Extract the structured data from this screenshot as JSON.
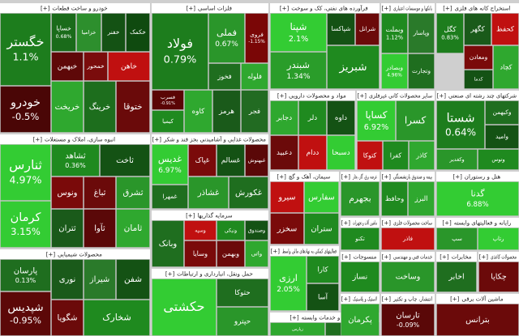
{
  "expand": "[+]",
  "sectors": [
    {
      "title": "خودرو و ساخت قطعات",
      "tiles": [
        {
          "label": "خگستر",
          "change": "1.1%",
          "color": "#1d7d1d"
        },
        {
          "label": "خودرو",
          "change": "-0.5%",
          "color": "#4a0606"
        },
        {
          "label": "خساپا",
          "change": "0.68%",
          "color": "#1a6b1a"
        },
        {
          "label": "خزامیا",
          "color": "#2d8f2d"
        },
        {
          "label": "خفنر",
          "color": "#145214"
        },
        {
          "label": "خکمک",
          "color": "#0f4a0f"
        },
        {
          "label": "خبهمن",
          "color": "#5e0808"
        },
        {
          "label": "خمحور",
          "color": "#7a0c0c"
        },
        {
          "label": "خاهن",
          "color": "#c01010"
        },
        {
          "label": "خریخت",
          "color": "#2fa82f"
        },
        {
          "label": "خرینگ",
          "color": "#1d6e1d"
        },
        {
          "label": "ختوقا",
          "color": "#6a0a0a"
        }
      ]
    },
    {
      "title": "فلزات اساسی",
      "tiles": [
        {
          "label": "فولاد",
          "change": "0.79%",
          "color": "#1d7d1d"
        },
        {
          "label": "فملی",
          "change": "0.67%",
          "color": "#2a962a"
        },
        {
          "label": "فروی",
          "change": "-1.15%",
          "color": "#7a0606"
        },
        {
          "label": "فخوز",
          "color": "#1f6e1f"
        },
        {
          "label": "فلوله",
          "color": "#2fa82f"
        },
        {
          "label": "فسرب",
          "change": "-0.91%",
          "color": "#5a0505"
        },
        {
          "label": "کیمیا",
          "color": "#1f8a1f"
        },
        {
          "label": "کاوه",
          "color": "#2fa82f"
        },
        {
          "label": "هرمز",
          "color": "#1a5a1a"
        },
        {
          "label": "فجر",
          "color": "#226b22"
        }
      ]
    },
    {
      "title": "فرآورده های نفتی، کک و سوخت",
      "tiles": [
        {
          "label": "شپنا",
          "change": "2.1%",
          "color": "#33cc33"
        },
        {
          "label": "شبندر",
          "change": "1.34%",
          "color": "#2a9d2a"
        },
        {
          "label": "شبریز",
          "color": "#1f8a1f"
        },
        {
          "label": "شپاکسا",
          "color": "#145214"
        },
        {
          "label": "شرانل",
          "color": "#6b0a0a"
        }
      ]
    },
    {
      "title": "بانکها و موسسات اعتباری",
      "tiles": [
        {
          "label": "وبملت",
          "change": "1.12%",
          "color": "#1f8a1f"
        },
        {
          "label": "وپاسار",
          "color": "#2a7a2a"
        },
        {
          "label": "وبصادر",
          "change": "4.96%",
          "color": "#33cc33"
        },
        {
          "label": "وتجارت",
          "color": "#1f6e1f"
        }
      ]
    },
    {
      "title": "استخراج کانه های فلزی",
      "tiles": [
        {
          "label": "کگل",
          "change": "0.83%",
          "color": "#1d7d1d"
        },
        {
          "label": "کگهر",
          "color": "#1a5a1a"
        },
        {
          "label": "کحفظ",
          "color": "#c01010"
        },
        {
          "label": "ومعادن",
          "color": "#7a0a0a"
        },
        {
          "label": "کچاد",
          "color": "#2fa82f"
        },
        {
          "label": "کدما",
          "color": "#145214"
        }
      ]
    },
    {
      "title": "انبوه سازی، املاک و مستغلات",
      "tiles": [
        {
          "label": "ثنارس",
          "change": "4.97%",
          "color": "#33cc33"
        },
        {
          "label": "کرمان",
          "change": "3.15%",
          "color": "#33cc33"
        },
        {
          "label": "ثشاهد",
          "change": "0.36%",
          "color": "#1f8a1f"
        },
        {
          "label": "ثاخت",
          "color": "#145214"
        },
        {
          "label": "ونوس",
          "color": "#7a0a0a"
        },
        {
          "label": "ثباغ",
          "color": "#6b0a0a"
        },
        {
          "label": "ثشرق",
          "color": "#2a962a"
        },
        {
          "label": "ثتران",
          "color": "#1a5a1a"
        },
        {
          "label": "ثآوا",
          "color": "#5a0808"
        },
        {
          "label": "ثامان",
          "color": "#2fa82f"
        }
      ]
    },
    {
      "title": "محصولات شیمیایی",
      "tiles": [
        {
          "label": "پارسان",
          "change": "0.13%",
          "color": "#1f6e1f"
        },
        {
          "label": "شپدیس",
          "change": "-0.95%",
          "color": "#5c0808"
        },
        {
          "label": "نوری",
          "color": "#1a5a1a"
        },
        {
          "label": "شیراز",
          "color": "#2a7a2a"
        },
        {
          "label": "شفن",
          "color": "#145214"
        },
        {
          "label": "شگویا",
          "color": "#6b0a0a"
        },
        {
          "label": "شخارک",
          "color": "#1f8a1f"
        }
      ]
    },
    {
      "title": "محصولات غذایی و آشامیدنی بجز قند و شکر",
      "tiles": [
        {
          "label": "غدیس",
          "change": "6.97%",
          "color": "#33cc33"
        },
        {
          "label": "غمهرا",
          "color": "#1f6e1f"
        },
        {
          "label": "غپاک",
          "color": "#7a0a0a"
        },
        {
          "label": "غسالم",
          "color": "#145214"
        },
        {
          "label": "غبهنوش",
          "color": "#5a0808"
        },
        {
          "label": "غشاذر",
          "color": "#2a962a"
        },
        {
          "label": "غکورش",
          "color": "#1f6e1f"
        }
      ]
    },
    {
      "title": "سرمایه گذاریها",
      "tiles": [
        {
          "label": "وبانک",
          "color": "#1f6e1f"
        },
        {
          "label": "وسپه",
          "color": "#c01010"
        },
        {
          "label": "ونیکی",
          "color": "#1f8a1f"
        },
        {
          "label": "وصندوق",
          "color": "#145214"
        },
        {
          "label": "وسایا",
          "color": "#7a0a0a"
        },
        {
          "label": "وبهمن",
          "color": "#6b0a0a"
        },
        {
          "label": "واتی",
          "color": "#2fa82f"
        }
      ]
    },
    {
      "title": "حمل ونقل، انبارداری و ارتباطات",
      "tiles": [
        {
          "label": "حکشتی",
          "color": "#33cc33"
        },
        {
          "label": "حتوکا",
          "color": "#1f6e1f"
        },
        {
          "label": "حپترو",
          "color": "#2a962a"
        }
      ]
    },
    {
      "title": "مواد و محصولات دارویی",
      "tiles": [
        {
          "label": "دجابر",
          "color": "#2fa82f"
        },
        {
          "label": "دلر",
          "color": "#1f8a1f"
        },
        {
          "label": "داوه",
          "color": "#145214"
        },
        {
          "label": "دعبید",
          "color": "#6b0a0a"
        },
        {
          "label": "ددام",
          "color": "#c01010"
        },
        {
          "label": "دسبحا",
          "color": "#33cc33"
        }
      ]
    },
    {
      "title": "سایر محصولات کانی غیرفلزی",
      "tiles": [
        {
          "label": "کساپا",
          "change": "6.92%",
          "color": "#33cc33"
        },
        {
          "label": "کسرا",
          "color": "#2a962a"
        },
        {
          "label": "کتوکا",
          "color": "#c01010"
        },
        {
          "label": "کفرا",
          "color": "#1f8a1f"
        },
        {
          "label": "کاذر",
          "color": "#2fa82f"
        }
      ]
    },
    {
      "title": "شرکتهای چند رشته ای صنعتی",
      "tiles": [
        {
          "label": "شستا",
          "change": "0.64%",
          "color": "#1d7d1d"
        },
        {
          "label": "وکبهمن",
          "color": "#1f6e1f"
        },
        {
          "label": "وامید",
          "color": "#145214"
        },
        {
          "label": "وکغدیر",
          "color": "#2a962a"
        },
        {
          "label": "وتوس",
          "color": "#1f8a1f"
        }
      ]
    },
    {
      "title": "سیمان، آهک و گچ",
      "tiles": [
        {
          "label": "سیرو",
          "color": "#c01010"
        },
        {
          "label": "سفارس",
          "color": "#33cc33"
        },
        {
          "label": "سخزر",
          "color": "#7a0a0a"
        },
        {
          "label": "ستران",
          "color": "#1f8a1f"
        }
      ]
    },
    {
      "title": "عرضه برق، گاز، بخار",
      "tiles": [
        {
          "label": "بجهرم",
          "color": "#2a962a"
        }
      ]
    },
    {
      "title": "بیمه و صندوق بازنشستگی",
      "tiles": [
        {
          "label": "وحافظ",
          "color": "#1f8a1f"
        },
        {
          "label": "البرز",
          "color": "#2fa82f"
        }
      ]
    },
    {
      "title": "هتل و رستوران",
      "tiles": [
        {
          "label": "گدنا",
          "change": "6.88%",
          "color": "#33cc33"
        }
      ]
    },
    {
      "title": "ماشین آلات و تجهیزات",
      "tiles": [
        {
          "label": "تکنو",
          "color": "#1f8a1f"
        }
      ]
    },
    {
      "title": "ساخت محصولات فلزی",
      "tiles": [
        {
          "label": "فاذر",
          "color": "#c01010"
        }
      ]
    },
    {
      "title": "رایانه و فعالیتهای وابسته",
      "tiles": [
        {
          "label": "سپ",
          "color": "#2a962a"
        },
        {
          "label": "رتاپ",
          "color": "#33cc33"
        }
      ]
    },
    {
      "title": "فعالیتهای کمکی به نهادهای مالی واسط",
      "tiles": [
        {
          "label": "ارزی",
          "change": "2.05%",
          "color": "#33cc33"
        },
        {
          "label": "کارا",
          "color": "#1f8a1f"
        },
        {
          "label": "آسا",
          "color": "#145214"
        }
      ]
    },
    {
      "title": "زراعت و خدمات وابسته",
      "tiles": [
        {
          "label": "زپارس",
          "color": "#2fa82f"
        },
        {
          "label": "زماهان",
          "color": "#1f6e1f"
        }
      ]
    },
    {
      "title": "منسوجات",
      "tiles": [
        {
          "label": "نساز",
          "color": "#1f8a1f"
        }
      ]
    },
    {
      "title": "خدمات فنی و مهندسی",
      "tiles": [
        {
          "label": "وساخت",
          "color": "#2a962a"
        }
      ]
    },
    {
      "title": "مخابرات",
      "tiles": [
        {
          "label": "اخابر",
          "color": "#1f6e1f"
        }
      ]
    },
    {
      "title": "محصولات کاغذی",
      "tiles": [
        {
          "label": "چکاپا",
          "color": "#6b0a0a"
        }
      ]
    },
    {
      "title": "لاستیک و پلاستیک",
      "tiles": [
        {
          "label": "پکرمان",
          "color": "#2fa82f"
        }
      ]
    },
    {
      "title": "انتشار، چاپ و تکثیر",
      "tiles": [
        {
          "label": "تارسان",
          "change": "-0.09%",
          "color": "#5a0808"
        }
      ]
    },
    {
      "title": "ماشین آلات برقی",
      "tiles": [
        {
          "label": "بترانس",
          "color": "#6b0a0a"
        }
      ]
    }
  ]
}
